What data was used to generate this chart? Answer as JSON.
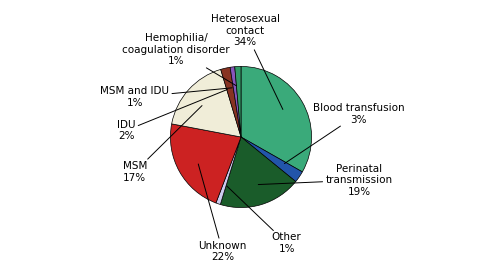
{
  "labels": [
    "Heterosexual\ncontact\n34%",
    "Blood transfusion\n3%",
    "Perinatal\ntransmission\n19%",
    "Other\n1%",
    "Unknown\n22%",
    "MSM\n17%",
    "IDU\n2%",
    "MSM and IDU\n1%",
    "Hemophilia/\ncoagulation disorder\n1%"
  ],
  "values": [
    566,
    45,
    321,
    18,
    378,
    296,
    37,
    18,
    24
  ],
  "colors": [
    "#3aaa7a",
    "#2255aa",
    "#1a5c2a",
    "#ccccee",
    "#cc2222",
    "#f0edd8",
    "#883322",
    "#8855bb",
    "#339966"
  ],
  "fontsize": 7.5,
  "background_color": "#ffffff"
}
